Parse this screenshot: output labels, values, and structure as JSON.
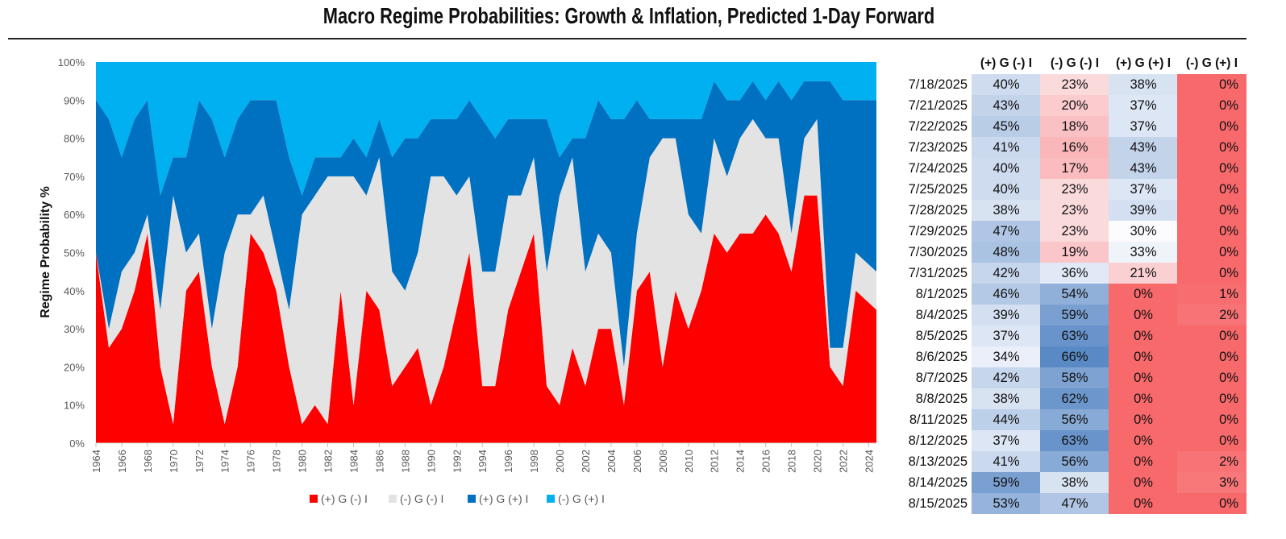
{
  "title": "Macro Regime Probabilities: Growth & Inflation, Predicted 1-Day Forward",
  "chart_data": {
    "type": "area",
    "stacked": true,
    "title": "Macro Regime Probabilities: Growth & Inflation, Predicted 1-Day Forward",
    "xlabel": "",
    "ylabel": "Regime Probability %",
    "ylim": [
      0,
      100
    ],
    "xlim": [
      1964,
      2024.6
    ],
    "y_ticks": [
      "0%",
      "10%",
      "20%",
      "30%",
      "40%",
      "50%",
      "60%",
      "70%",
      "80%",
      "90%",
      "100%"
    ],
    "x_ticks": [
      "1964",
      "1966",
      "1968",
      "1970",
      "1972",
      "1974",
      "1976",
      "1978",
      "1980",
      "1982",
      "1984",
      "1986",
      "1988",
      "1990",
      "1992",
      "1994",
      "1996",
      "1998",
      "2000",
      "2002",
      "2004",
      "2006",
      "2008",
      "2010",
      "2012",
      "2014",
      "2016",
      "2018",
      "2020",
      "2022",
      "2024"
    ],
    "legend_position": "bottom",
    "x": [
      1964,
      1965,
      1966,
      1967,
      1968,
      1969,
      1970,
      1971,
      1972,
      1973,
      1974,
      1975,
      1976,
      1977,
      1978,
      1979,
      1980,
      1981,
      1982,
      1983,
      1984,
      1985,
      1986,
      1987,
      1988,
      1989,
      1990,
      1991,
      1992,
      1993,
      1994,
      1995,
      1996,
      1997,
      1998,
      1999,
      2000,
      2001,
      2002,
      2003,
      2004,
      2005,
      2006,
      2007,
      2008,
      2009,
      2010,
      2011,
      2012,
      2013,
      2014,
      2015,
      2016,
      2017,
      2018,
      2019,
      2020,
      2021,
      2022,
      2023,
      2024
    ],
    "series": [
      {
        "name": "(+) G (-) I",
        "color": "#FF0000",
        "values": [
          50,
          25,
          30,
          40,
          55,
          20,
          5,
          40,
          45,
          20,
          5,
          20,
          55,
          50,
          40,
          20,
          5,
          10,
          5,
          40,
          10,
          40,
          35,
          15,
          20,
          25,
          10,
          20,
          35,
          50,
          15,
          15,
          35,
          45,
          55,
          15,
          10,
          25,
          15,
          30,
          30,
          10,
          40,
          45,
          20,
          40,
          30,
          40,
          55,
          50,
          55,
          55,
          60,
          55,
          45,
          65,
          65,
          20,
          15,
          40,
          35
        ]
      },
      {
        "name": "(-) G (-) I",
        "color": "#E3E3E3",
        "values": [
          0,
          5,
          15,
          10,
          5,
          15,
          60,
          10,
          10,
          10,
          45,
          40,
          5,
          15,
          10,
          15,
          55,
          55,
          65,
          30,
          60,
          25,
          40,
          30,
          20,
          25,
          60,
          50,
          30,
          20,
          30,
          30,
          30,
          20,
          20,
          30,
          55,
          50,
          30,
          25,
          20,
          10,
          15,
          30,
          60,
          40,
          30,
          15,
          25,
          20,
          25,
          30,
          20,
          25,
          10,
          15,
          20,
          5,
          10,
          10,
          10
        ]
      },
      {
        "name": "(+) G (+) I",
        "color": "#0070C0",
        "values": [
          40,
          55,
          30,
          35,
          30,
          30,
          10,
          25,
          35,
          55,
          25,
          25,
          30,
          25,
          40,
          40,
          5,
          10,
          5,
          5,
          10,
          10,
          10,
          30,
          40,
          30,
          15,
          15,
          20,
          20,
          40,
          35,
          20,
          20,
          10,
          40,
          10,
          5,
          35,
          35,
          35,
          65,
          35,
          10,
          5,
          5,
          25,
          30,
          15,
          20,
          10,
          10,
          10,
          15,
          35,
          15,
          10,
          70,
          65,
          40,
          45
        ]
      },
      {
        "name": "(-) G (+) I",
        "color": "#00B0F0",
        "values": [
          10,
          15,
          25,
          15,
          10,
          35,
          25,
          25,
          10,
          15,
          25,
          15,
          10,
          10,
          10,
          25,
          35,
          25,
          25,
          25,
          20,
          25,
          15,
          25,
          20,
          20,
          15,
          15,
          15,
          10,
          15,
          20,
          15,
          15,
          15,
          15,
          25,
          20,
          20,
          10,
          15,
          15,
          10,
          15,
          15,
          15,
          15,
          15,
          5,
          10,
          10,
          5,
          10,
          5,
          10,
          5,
          5,
          5,
          10,
          10,
          10
        ]
      }
    ]
  },
  "table": {
    "headers": [
      "(+) G (-) I",
      "(-) G (-) I",
      "(+) G (+) I",
      "(-) G (+) I"
    ],
    "rows": [
      {
        "date": "7/18/2025",
        "values": [
          "40%",
          "23%",
          "38%",
          "0%"
        ]
      },
      {
        "date": "7/21/2025",
        "values": [
          "43%",
          "20%",
          "37%",
          "0%"
        ]
      },
      {
        "date": "7/22/2025",
        "values": [
          "45%",
          "18%",
          "37%",
          "0%"
        ]
      },
      {
        "date": "7/23/2025",
        "values": [
          "41%",
          "16%",
          "43%",
          "0%"
        ]
      },
      {
        "date": "7/24/2025",
        "values": [
          "40%",
          "17%",
          "43%",
          "0%"
        ]
      },
      {
        "date": "7/25/2025",
        "values": [
          "40%",
          "23%",
          "37%",
          "0%"
        ]
      },
      {
        "date": "7/28/2025",
        "values": [
          "38%",
          "23%",
          "39%",
          "0%"
        ]
      },
      {
        "date": "7/29/2025",
        "values": [
          "47%",
          "23%",
          "30%",
          "0%"
        ]
      },
      {
        "date": "7/30/2025",
        "values": [
          "48%",
          "19%",
          "33%",
          "0%"
        ]
      },
      {
        "date": "7/31/2025",
        "values": [
          "42%",
          "36%",
          "21%",
          "0%"
        ]
      },
      {
        "date": "8/1/2025",
        "values": [
          "46%",
          "54%",
          "0%",
          "1%"
        ]
      },
      {
        "date": "8/4/2025",
        "values": [
          "39%",
          "59%",
          "0%",
          "2%"
        ]
      },
      {
        "date": "8/5/2025",
        "values": [
          "37%",
          "63%",
          "0%",
          "0%"
        ]
      },
      {
        "date": "8/6/2025",
        "values": [
          "34%",
          "66%",
          "0%",
          "0%"
        ]
      },
      {
        "date": "8/7/2025",
        "values": [
          "42%",
          "58%",
          "0%",
          "0%"
        ]
      },
      {
        "date": "8/8/2025",
        "values": [
          "38%",
          "62%",
          "0%",
          "0%"
        ]
      },
      {
        "date": "8/11/2025",
        "values": [
          "44%",
          "56%",
          "0%",
          "0%"
        ]
      },
      {
        "date": "8/12/2025",
        "values": [
          "37%",
          "63%",
          "0%",
          "0%"
        ]
      },
      {
        "date": "8/13/2025",
        "values": [
          "41%",
          "56%",
          "0%",
          "2%"
        ]
      },
      {
        "date": "8/14/2025",
        "values": [
          "59%",
          "38%",
          "0%",
          "3%"
        ]
      },
      {
        "date": "8/15/2025",
        "values": [
          "53%",
          "47%",
          "0%",
          "0%"
        ]
      }
    ],
    "scale_colors": {
      "low": "#F8696B",
      "mid": "#FCFCFF",
      "high": "#5A8AC6"
    }
  }
}
